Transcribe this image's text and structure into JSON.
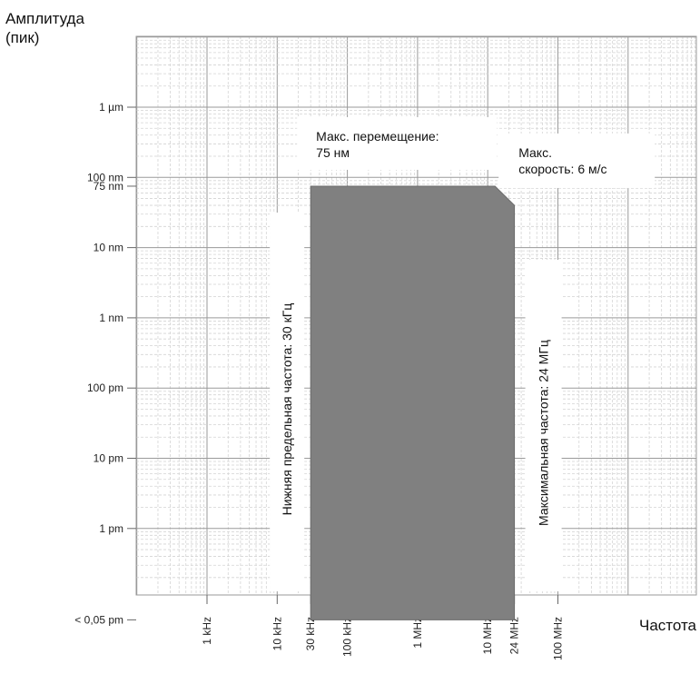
{
  "chart_data": {
    "type": "area",
    "ylabel": "Амплитуда (пик)",
    "ylabel_lines": [
      "Амплитуда",
      "(пик)"
    ],
    "xlabel": "Частота",
    "x_scale": "log",
    "y_scale": "log",
    "xlim_hz": [
      20,
      1000000000
    ],
    "ylim_m": [
      3e-14,
      1e-05
    ],
    "x_ticks": [
      {
        "value": 1000,
        "label": "1 kHz"
      },
      {
        "value": 10000,
        "label": "10 kHz"
      },
      {
        "value": 30000,
        "label": "30 kHz"
      },
      {
        "value": 100000,
        "label": "100 kHz"
      },
      {
        "value": 1000000,
        "label": "1 MHz"
      },
      {
        "value": 10000000,
        "label": "10 MHz"
      },
      {
        "value": 24000000,
        "label": "24 MHz"
      },
      {
        "value": 100000000,
        "label": "100 MHz"
      }
    ],
    "y_ticks": [
      {
        "value": 1e-06,
        "label": "1 µm"
      },
      {
        "value": 1e-07,
        "label": "100 nm"
      },
      {
        "value": 7.5e-08,
        "label": "75 nm"
      },
      {
        "value": 1e-08,
        "label": "10 nm"
      },
      {
        "value": 1e-09,
        "label": "1 nm"
      },
      {
        "value": 1e-10,
        "label": "100 pm"
      },
      {
        "value": 1e-11,
        "label": "10 pm"
      },
      {
        "value": 1e-12,
        "label": "1 pm"
      },
      {
        "value": 5e-14,
        "label": "< 0,05 pm"
      }
    ],
    "region": {
      "points": [
        {
          "x": 30000,
          "y": 5e-14
        },
        {
          "x": 30000,
          "y": 7.5e-08
        },
        {
          "x": 12700000,
          "y": 7.5e-08
        },
        {
          "x": 24000000,
          "y": 4e-08
        },
        {
          "x": 24000000,
          "y": 5e-14
        }
      ],
      "color": "#808080"
    },
    "annotations": {
      "max_displacement": "Макс. перемещение:\n75 нм",
      "max_velocity": "Макс.\nскорость: 6 м/с",
      "lower_cutoff": "Нижняя предельная частота: 30 кГц",
      "max_frequency": "Максимальная частота: 24 МГц"
    },
    "grid": true
  }
}
